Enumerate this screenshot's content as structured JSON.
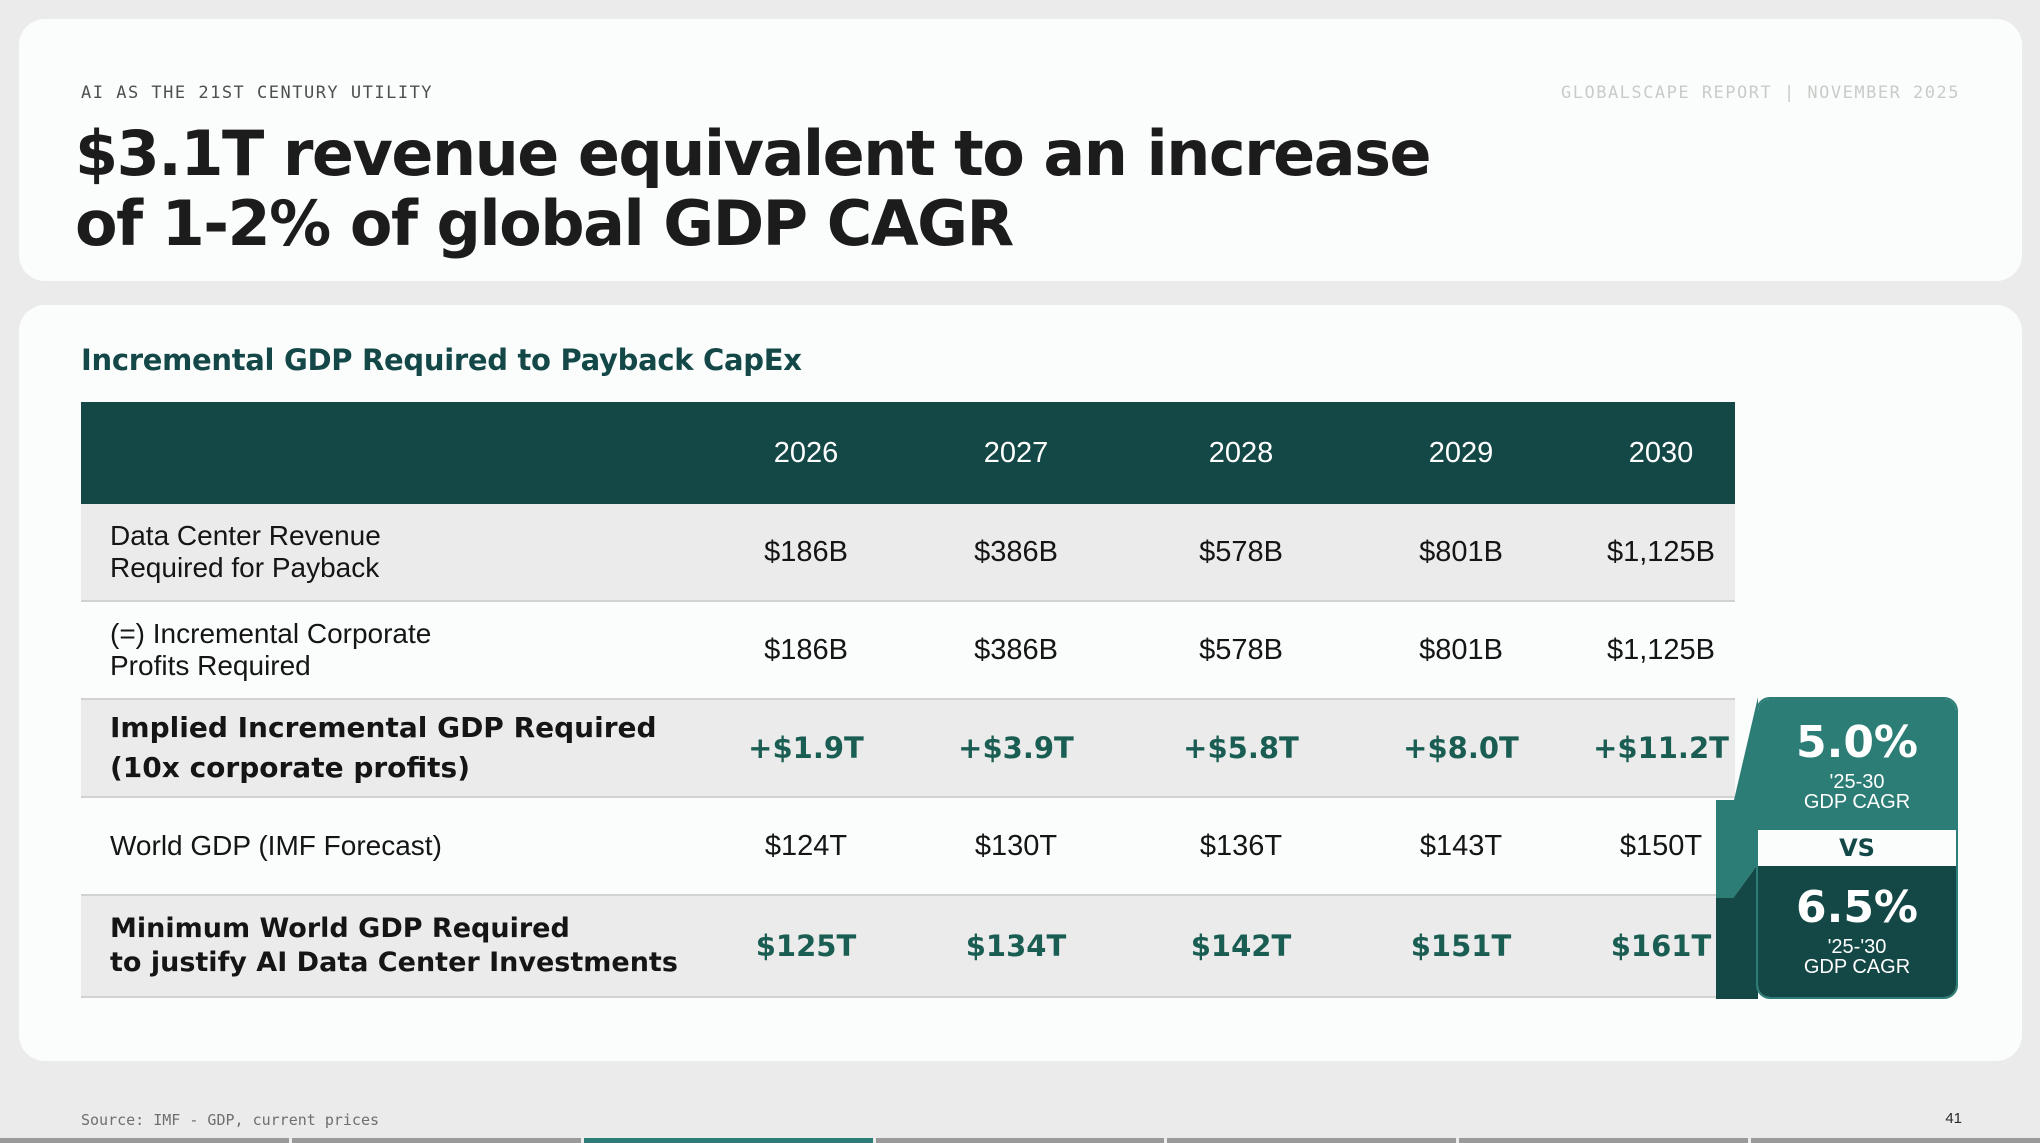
{
  "header": {
    "eyebrow": "AI AS THE 21ST CENTURY UTILITY",
    "report_meta": "GLOBALSCAPE REPORT | NOVEMBER 2025",
    "headline_line1": "$3.1T revenue equivalent to an increase",
    "headline_line2": "of 1-2% of global GDP CAGR"
  },
  "table": {
    "title": "Incremental GDP Required to Payback CapEx",
    "years": [
      "2026",
      "2027",
      "2028",
      "2029",
      "2030"
    ],
    "rows": [
      {
        "label_line1": "Data Center Revenue",
        "label_line2": "Required for Payback",
        "values": [
          "$186B",
          "$386B",
          "$578B",
          "$801B",
          "$1,125B"
        ]
      },
      {
        "label_line1": "(=) Incremental Corporate",
        "label_line2": "Profits Required",
        "values": [
          "$186B",
          "$386B",
          "$578B",
          "$801B",
          "$1,125B"
        ]
      },
      {
        "label_line1": "Implied Incremental GDP Required",
        "label_line2": "(10x corporate profits)",
        "values": [
          "+$1.9T",
          "+$3.9T",
          "+$5.8T",
          "+$8.0T",
          "+$11.2T"
        ]
      },
      {
        "label_line1": "World GDP (IMF Forecast)",
        "values": [
          "$124T",
          "$130T",
          "$136T",
          "$143T",
          "$150T"
        ]
      },
      {
        "label_line1": "Minimum World GDP Required",
        "label_line2": "to justify AI Data Center Investments",
        "values": [
          "$125T",
          "$134T",
          "$142T",
          "$151T",
          "$161T"
        ]
      }
    ]
  },
  "callout": {
    "top_value": "5.0%",
    "top_period": "'25-30",
    "top_metric": "GDP CAGR",
    "vs": "VS",
    "bottom_value": "6.5%",
    "bottom_period": "'25-'30",
    "bottom_metric": "GDP CAGR"
  },
  "footer": {
    "source": "Source: IMF - GDP, current prices",
    "page_number": "41"
  },
  "colors": {
    "dark_teal": "#134846",
    "teal": "#2c7d76",
    "accent_text": "#1a5d52"
  }
}
